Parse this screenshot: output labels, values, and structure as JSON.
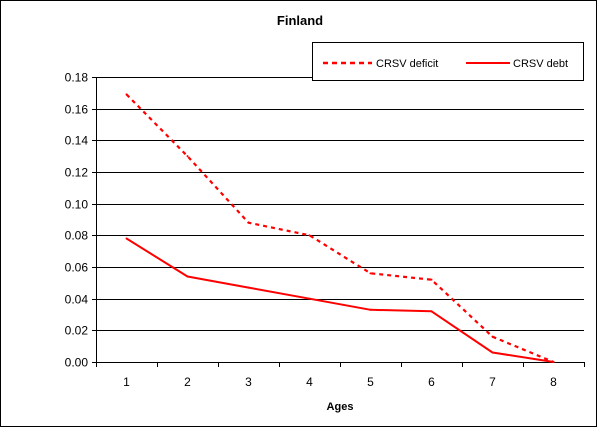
{
  "chart_data": {
    "type": "line",
    "title": "Finland",
    "xlabel": "Ages",
    "ylabel": "",
    "categories": [
      "1",
      "2",
      "3",
      "4",
      "5",
      "6",
      "7",
      "8"
    ],
    "ylim": [
      0,
      0.18
    ],
    "yticks": [
      "0.00",
      "0.02",
      "0.04",
      "0.06",
      "0.08",
      "0.10",
      "0.12",
      "0.14",
      "0.16",
      "0.18"
    ],
    "grid": true,
    "legend_position": "top-right",
    "series": [
      {
        "name": "CRSV deficit",
        "style": "dotted",
        "color": "#ff0000",
        "values": [
          0.169,
          0.13,
          0.088,
          0.08,
          0.056,
          0.052,
          0.016,
          0.0
        ]
      },
      {
        "name": "CRSV debt",
        "style": "solid",
        "color": "#ff0000",
        "values": [
          0.078,
          0.054,
          0.047,
          0.04,
          0.033,
          0.032,
          0.006,
          0.0
        ]
      }
    ]
  }
}
